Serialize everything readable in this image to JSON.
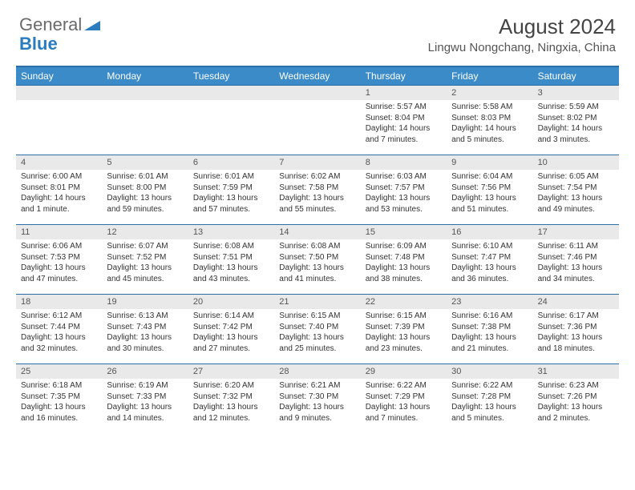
{
  "brand": {
    "general": "General",
    "blue": "Blue"
  },
  "title": "August 2024",
  "location": "Lingwu Nongchang, Ningxia, China",
  "colors": {
    "header_bg": "#3b8bc9",
    "border": "#2b6ea8",
    "daynum_bg": "#e9e9e9",
    "text": "#333333",
    "header_text": "#ffffff"
  },
  "weekdays": [
    "Sunday",
    "Monday",
    "Tuesday",
    "Wednesday",
    "Thursday",
    "Friday",
    "Saturday"
  ],
  "grid": [
    [
      {
        "day": "",
        "sunrise": "",
        "sunset": "",
        "daylight1": "",
        "daylight2": ""
      },
      {
        "day": "",
        "sunrise": "",
        "sunset": "",
        "daylight1": "",
        "daylight2": ""
      },
      {
        "day": "",
        "sunrise": "",
        "sunset": "",
        "daylight1": "",
        "daylight2": ""
      },
      {
        "day": "",
        "sunrise": "",
        "sunset": "",
        "daylight1": "",
        "daylight2": ""
      },
      {
        "day": "1",
        "sunrise": "Sunrise: 5:57 AM",
        "sunset": "Sunset: 8:04 PM",
        "daylight1": "Daylight: 14 hours",
        "daylight2": "and 7 minutes."
      },
      {
        "day": "2",
        "sunrise": "Sunrise: 5:58 AM",
        "sunset": "Sunset: 8:03 PM",
        "daylight1": "Daylight: 14 hours",
        "daylight2": "and 5 minutes."
      },
      {
        "day": "3",
        "sunrise": "Sunrise: 5:59 AM",
        "sunset": "Sunset: 8:02 PM",
        "daylight1": "Daylight: 14 hours",
        "daylight2": "and 3 minutes."
      }
    ],
    [
      {
        "day": "4",
        "sunrise": "Sunrise: 6:00 AM",
        "sunset": "Sunset: 8:01 PM",
        "daylight1": "Daylight: 14 hours",
        "daylight2": "and 1 minute."
      },
      {
        "day": "5",
        "sunrise": "Sunrise: 6:01 AM",
        "sunset": "Sunset: 8:00 PM",
        "daylight1": "Daylight: 13 hours",
        "daylight2": "and 59 minutes."
      },
      {
        "day": "6",
        "sunrise": "Sunrise: 6:01 AM",
        "sunset": "Sunset: 7:59 PM",
        "daylight1": "Daylight: 13 hours",
        "daylight2": "and 57 minutes."
      },
      {
        "day": "7",
        "sunrise": "Sunrise: 6:02 AM",
        "sunset": "Sunset: 7:58 PM",
        "daylight1": "Daylight: 13 hours",
        "daylight2": "and 55 minutes."
      },
      {
        "day": "8",
        "sunrise": "Sunrise: 6:03 AM",
        "sunset": "Sunset: 7:57 PM",
        "daylight1": "Daylight: 13 hours",
        "daylight2": "and 53 minutes."
      },
      {
        "day": "9",
        "sunrise": "Sunrise: 6:04 AM",
        "sunset": "Sunset: 7:56 PM",
        "daylight1": "Daylight: 13 hours",
        "daylight2": "and 51 minutes."
      },
      {
        "day": "10",
        "sunrise": "Sunrise: 6:05 AM",
        "sunset": "Sunset: 7:54 PM",
        "daylight1": "Daylight: 13 hours",
        "daylight2": "and 49 minutes."
      }
    ],
    [
      {
        "day": "11",
        "sunrise": "Sunrise: 6:06 AM",
        "sunset": "Sunset: 7:53 PM",
        "daylight1": "Daylight: 13 hours",
        "daylight2": "and 47 minutes."
      },
      {
        "day": "12",
        "sunrise": "Sunrise: 6:07 AM",
        "sunset": "Sunset: 7:52 PM",
        "daylight1": "Daylight: 13 hours",
        "daylight2": "and 45 minutes."
      },
      {
        "day": "13",
        "sunrise": "Sunrise: 6:08 AM",
        "sunset": "Sunset: 7:51 PM",
        "daylight1": "Daylight: 13 hours",
        "daylight2": "and 43 minutes."
      },
      {
        "day": "14",
        "sunrise": "Sunrise: 6:08 AM",
        "sunset": "Sunset: 7:50 PM",
        "daylight1": "Daylight: 13 hours",
        "daylight2": "and 41 minutes."
      },
      {
        "day": "15",
        "sunrise": "Sunrise: 6:09 AM",
        "sunset": "Sunset: 7:48 PM",
        "daylight1": "Daylight: 13 hours",
        "daylight2": "and 38 minutes."
      },
      {
        "day": "16",
        "sunrise": "Sunrise: 6:10 AM",
        "sunset": "Sunset: 7:47 PM",
        "daylight1": "Daylight: 13 hours",
        "daylight2": "and 36 minutes."
      },
      {
        "day": "17",
        "sunrise": "Sunrise: 6:11 AM",
        "sunset": "Sunset: 7:46 PM",
        "daylight1": "Daylight: 13 hours",
        "daylight2": "and 34 minutes."
      }
    ],
    [
      {
        "day": "18",
        "sunrise": "Sunrise: 6:12 AM",
        "sunset": "Sunset: 7:44 PM",
        "daylight1": "Daylight: 13 hours",
        "daylight2": "and 32 minutes."
      },
      {
        "day": "19",
        "sunrise": "Sunrise: 6:13 AM",
        "sunset": "Sunset: 7:43 PM",
        "daylight1": "Daylight: 13 hours",
        "daylight2": "and 30 minutes."
      },
      {
        "day": "20",
        "sunrise": "Sunrise: 6:14 AM",
        "sunset": "Sunset: 7:42 PM",
        "daylight1": "Daylight: 13 hours",
        "daylight2": "and 27 minutes."
      },
      {
        "day": "21",
        "sunrise": "Sunrise: 6:15 AM",
        "sunset": "Sunset: 7:40 PM",
        "daylight1": "Daylight: 13 hours",
        "daylight2": "and 25 minutes."
      },
      {
        "day": "22",
        "sunrise": "Sunrise: 6:15 AM",
        "sunset": "Sunset: 7:39 PM",
        "daylight1": "Daylight: 13 hours",
        "daylight2": "and 23 minutes."
      },
      {
        "day": "23",
        "sunrise": "Sunrise: 6:16 AM",
        "sunset": "Sunset: 7:38 PM",
        "daylight1": "Daylight: 13 hours",
        "daylight2": "and 21 minutes."
      },
      {
        "day": "24",
        "sunrise": "Sunrise: 6:17 AM",
        "sunset": "Sunset: 7:36 PM",
        "daylight1": "Daylight: 13 hours",
        "daylight2": "and 18 minutes."
      }
    ],
    [
      {
        "day": "25",
        "sunrise": "Sunrise: 6:18 AM",
        "sunset": "Sunset: 7:35 PM",
        "daylight1": "Daylight: 13 hours",
        "daylight2": "and 16 minutes."
      },
      {
        "day": "26",
        "sunrise": "Sunrise: 6:19 AM",
        "sunset": "Sunset: 7:33 PM",
        "daylight1": "Daylight: 13 hours",
        "daylight2": "and 14 minutes."
      },
      {
        "day": "27",
        "sunrise": "Sunrise: 6:20 AM",
        "sunset": "Sunset: 7:32 PM",
        "daylight1": "Daylight: 13 hours",
        "daylight2": "and 12 minutes."
      },
      {
        "day": "28",
        "sunrise": "Sunrise: 6:21 AM",
        "sunset": "Sunset: 7:30 PM",
        "daylight1": "Daylight: 13 hours",
        "daylight2": "and 9 minutes."
      },
      {
        "day": "29",
        "sunrise": "Sunrise: 6:22 AM",
        "sunset": "Sunset: 7:29 PM",
        "daylight1": "Daylight: 13 hours",
        "daylight2": "and 7 minutes."
      },
      {
        "day": "30",
        "sunrise": "Sunrise: 6:22 AM",
        "sunset": "Sunset: 7:28 PM",
        "daylight1": "Daylight: 13 hours",
        "daylight2": "and 5 minutes."
      },
      {
        "day": "31",
        "sunrise": "Sunrise: 6:23 AM",
        "sunset": "Sunset: 7:26 PM",
        "daylight1": "Daylight: 13 hours",
        "daylight2": "and 2 minutes."
      }
    ]
  ]
}
